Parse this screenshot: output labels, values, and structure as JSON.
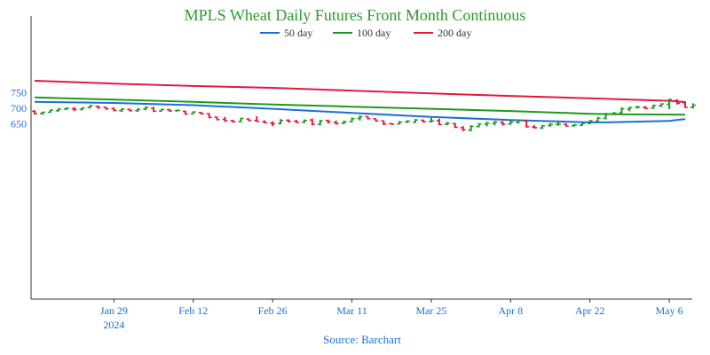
{
  "chart_data": {
    "type": "ohlc",
    "title": "MPLS Wheat Daily Futures Front Month Continuous",
    "source": "Source: Barchart",
    "xlabel": "",
    "ylabel": "",
    "ylim": [
      620,
      800
    ],
    "yticks": [
      650,
      700,
      750
    ],
    "x_ticks": [
      {
        "label": "Jan 29",
        "sublabel": "2024",
        "day": 10
      },
      {
        "label": "Feb 12",
        "sublabel": "",
        "day": 20
      },
      {
        "label": "Feb 26",
        "sublabel": "",
        "day": 30
      },
      {
        "label": "Mar 11",
        "sublabel": "",
        "day": 40
      },
      {
        "label": "Mar 25",
        "sublabel": "",
        "day": 50
      },
      {
        "label": "Apr 8",
        "sublabel": "",
        "day": 60
      },
      {
        "label": "Apr 22",
        "sublabel": "",
        "day": 70
      },
      {
        "label": "May 6",
        "sublabel": "",
        "day": 80
      }
    ],
    "x_range": [
      0,
      82
    ],
    "grid": false,
    "legend_position": "top-center",
    "colors": {
      "up": "#1d9a1d",
      "down": "#e0193f",
      "title": "#2a9a2a",
      "axis": "#333333",
      "tick": "#1a6fd6",
      "source": "#1a6fd6"
    },
    "moving_averages": [
      {
        "name": "50 day",
        "color": "#1a6fd6",
        "values": [
          [
            0,
            721
          ],
          [
            10,
            717
          ],
          [
            20,
            710
          ],
          [
            30,
            698
          ],
          [
            40,
            685
          ],
          [
            50,
            672
          ],
          [
            60,
            662
          ],
          [
            70,
            654
          ],
          [
            72,
            654
          ],
          [
            80,
            659
          ],
          [
            82,
            665
          ]
        ]
      },
      {
        "name": "100 day",
        "color": "#1d9a1d",
        "values": [
          [
            0,
            735
          ],
          [
            10,
            728
          ],
          [
            20,
            721
          ],
          [
            30,
            712
          ],
          [
            40,
            705
          ],
          [
            50,
            698
          ],
          [
            60,
            691
          ],
          [
            70,
            682
          ],
          [
            75,
            680
          ],
          [
            82,
            679
          ]
        ]
      },
      {
        "name": "200 day",
        "color": "#e0193f",
        "values": [
          [
            0,
            789
          ],
          [
            10,
            780
          ],
          [
            20,
            772
          ],
          [
            30,
            766
          ],
          [
            40,
            757
          ],
          [
            50,
            748
          ],
          [
            60,
            740
          ],
          [
            70,
            732
          ],
          [
            80,
            724
          ],
          [
            82,
            720
          ]
        ]
      }
    ],
    "bars": [
      {
        "o": 690,
        "h": 694,
        "l": 680,
        "c": 682
      },
      {
        "o": 683,
        "h": 689,
        "l": 679,
        "c": 687
      },
      {
        "o": 687,
        "h": 696,
        "l": 685,
        "c": 694
      },
      {
        "o": 692,
        "h": 700,
        "l": 689,
        "c": 697
      },
      {
        "o": 697,
        "h": 703,
        "l": 694,
        "c": 700
      },
      {
        "o": 698,
        "h": 704,
        "l": 691,
        "c": 696
      },
      {
        "o": 696,
        "h": 703,
        "l": 693,
        "c": 701
      },
      {
        "o": 702,
        "h": 711,
        "l": 699,
        "c": 708
      },
      {
        "o": 706,
        "h": 709,
        "l": 698,
        "c": 702
      },
      {
        "o": 703,
        "h": 705,
        "l": 695,
        "c": 698
      },
      {
        "o": 699,
        "h": 702,
        "l": 690,
        "c": 693
      },
      {
        "o": 692,
        "h": 700,
        "l": 688,
        "c": 697
      },
      {
        "o": 696,
        "h": 699,
        "l": 690,
        "c": 692
      },
      {
        "o": 692,
        "h": 700,
        "l": 688,
        "c": 696
      },
      {
        "o": 697,
        "h": 706,
        "l": 693,
        "c": 702
      },
      {
        "o": 700,
        "h": 704,
        "l": 688,
        "c": 690
      },
      {
        "o": 691,
        "h": 698,
        "l": 689,
        "c": 696
      },
      {
        "o": 695,
        "h": 698,
        "l": 689,
        "c": 691
      },
      {
        "o": 692,
        "h": 696,
        "l": 689,
        "c": 693
      },
      {
        "o": 690,
        "h": 692,
        "l": 679,
        "c": 681
      },
      {
        "o": 682,
        "h": 690,
        "l": 680,
        "c": 688
      },
      {
        "o": 686,
        "h": 688,
        "l": 680,
        "c": 682
      },
      {
        "o": 682,
        "h": 684,
        "l": 668,
        "c": 670
      },
      {
        "o": 671,
        "h": 673,
        "l": 661,
        "c": 663
      },
      {
        "o": 664,
        "h": 672,
        "l": 656,
        "c": 659
      },
      {
        "o": 660,
        "h": 662,
        "l": 653,
        "c": 656
      },
      {
        "o": 657,
        "h": 669,
        "l": 654,
        "c": 667
      },
      {
        "o": 665,
        "h": 667,
        "l": 658,
        "c": 660
      },
      {
        "o": 660,
        "h": 674,
        "l": 656,
        "c": 657
      },
      {
        "o": 656,
        "h": 661,
        "l": 651,
        "c": 653
      },
      {
        "o": 652,
        "h": 658,
        "l": 642,
        "c": 650
      },
      {
        "o": 650,
        "h": 665,
        "l": 648,
        "c": 660
      },
      {
        "o": 661,
        "h": 664,
        "l": 654,
        "c": 657
      },
      {
        "o": 658,
        "h": 662,
        "l": 652,
        "c": 654
      },
      {
        "o": 655,
        "h": 664,
        "l": 652,
        "c": 660
      },
      {
        "o": 662,
        "h": 666,
        "l": 644,
        "c": 648
      },
      {
        "o": 648,
        "h": 662,
        "l": 644,
        "c": 659
      },
      {
        "o": 660,
        "h": 663,
        "l": 651,
        "c": 656
      },
      {
        "o": 654,
        "h": 660,
        "l": 647,
        "c": 650
      },
      {
        "o": 651,
        "h": 660,
        "l": 648,
        "c": 656
      },
      {
        "o": 657,
        "h": 670,
        "l": 654,
        "c": 666
      },
      {
        "o": 667,
        "h": 677,
        "l": 660,
        "c": 672
      },
      {
        "o": 673,
        "h": 674,
        "l": 664,
        "c": 666
      },
      {
        "o": 666,
        "h": 667,
        "l": 657,
        "c": 659
      },
      {
        "o": 659,
        "h": 660,
        "l": 645,
        "c": 649
      },
      {
        "o": 650,
        "h": 652,
        "l": 646,
        "c": 648
      },
      {
        "o": 649,
        "h": 659,
        "l": 647,
        "c": 655
      },
      {
        "o": 656,
        "h": 661,
        "l": 652,
        "c": 658
      },
      {
        "o": 655,
        "h": 665,
        "l": 652,
        "c": 662
      },
      {
        "o": 661,
        "h": 663,
        "l": 654,
        "c": 656
      },
      {
        "o": 657,
        "h": 669,
        "l": 654,
        "c": 659
      },
      {
        "o": 660,
        "h": 666,
        "l": 645,
        "c": 647
      },
      {
        "o": 648,
        "h": 656,
        "l": 645,
        "c": 651
      },
      {
        "o": 650,
        "h": 652,
        "l": 636,
        "c": 638
      },
      {
        "o": 637,
        "h": 642,
        "l": 626,
        "c": 630
      },
      {
        "o": 629,
        "h": 645,
        "l": 625,
        "c": 641
      },
      {
        "o": 640,
        "h": 652,
        "l": 638,
        "c": 649
      },
      {
        "o": 648,
        "h": 656,
        "l": 641,
        "c": 652
      },
      {
        "o": 651,
        "h": 659,
        "l": 645,
        "c": 655
      },
      {
        "o": 654,
        "h": 658,
        "l": 644,
        "c": 648
      },
      {
        "o": 649,
        "h": 660,
        "l": 646,
        "c": 655
      },
      {
        "o": 654,
        "h": 664,
        "l": 650,
        "c": 660
      },
      {
        "o": 659,
        "h": 661,
        "l": 637,
        "c": 640
      },
      {
        "o": 639,
        "h": 645,
        "l": 634,
        "c": 637
      },
      {
        "o": 636,
        "h": 646,
        "l": 633,
        "c": 643
      },
      {
        "o": 644,
        "h": 652,
        "l": 640,
        "c": 647
      },
      {
        "o": 648,
        "h": 660,
        "l": 643,
        "c": 649
      },
      {
        "o": 648,
        "h": 651,
        "l": 641,
        "c": 642
      },
      {
        "o": 643,
        "h": 649,
        "l": 640,
        "c": 646
      },
      {
        "o": 645,
        "h": 652,
        "l": 642,
        "c": 650
      },
      {
        "o": 651,
        "h": 662,
        "l": 648,
        "c": 659
      },
      {
        "o": 658,
        "h": 672,
        "l": 655,
        "c": 668
      },
      {
        "o": 667,
        "h": 685,
        "l": 664,
        "c": 680
      },
      {
        "o": 681,
        "h": 688,
        "l": 678,
        "c": 684
      },
      {
        "o": 685,
        "h": 703,
        "l": 682,
        "c": 698
      },
      {
        "o": 697,
        "h": 705,
        "l": 690,
        "c": 702
      },
      {
        "o": 703,
        "h": 708,
        "l": 699,
        "c": 704
      },
      {
        "o": 703,
        "h": 707,
        "l": 697,
        "c": 699
      },
      {
        "o": 700,
        "h": 712,
        "l": 698,
        "c": 709
      },
      {
        "o": 708,
        "h": 716,
        "l": 704,
        "c": 714
      },
      {
        "o": 713,
        "h": 731,
        "l": 697,
        "c": 728
      },
      {
        "o": 725,
        "h": 729,
        "l": 712,
        "c": 716
      },
      {
        "o": 718,
        "h": 722,
        "l": 701,
        "c": 703
      },
      {
        "o": 703,
        "h": 716,
        "l": 700,
        "c": 710
      }
    ]
  }
}
